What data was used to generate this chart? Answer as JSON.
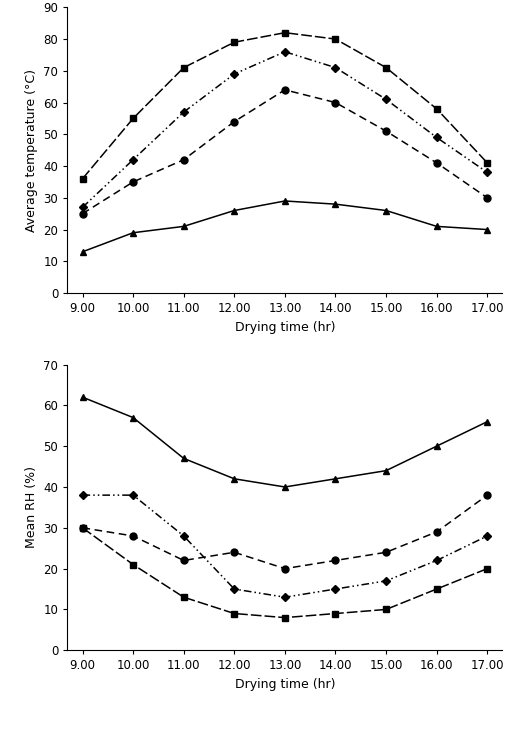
{
  "x": [
    9.0,
    10.0,
    11.0,
    12.0,
    13.0,
    14.0,
    15.0,
    16.0,
    17.0
  ],
  "temp": {
    "open_sun": [
      13,
      19,
      21,
      26,
      29,
      28,
      26,
      21,
      20
    ],
    "zone1": [
      25,
      35,
      42,
      54,
      64,
      60,
      51,
      41,
      30
    ],
    "zone2": [
      27,
      42,
      57,
      69,
      76,
      71,
      61,
      49,
      38
    ],
    "zone3": [
      36,
      55,
      71,
      79,
      82,
      80,
      71,
      58,
      41
    ]
  },
  "rh": {
    "open_sun": [
      62,
      57,
      47,
      42,
      40,
      42,
      44,
      50,
      56
    ],
    "zone1": [
      30,
      28,
      22,
      24,
      20,
      22,
      24,
      29,
      38
    ],
    "zone2": [
      38,
      38,
      28,
      15,
      13,
      15,
      17,
      22,
      28
    ],
    "zone3": [
      30,
      21,
      13,
      9,
      8,
      9,
      10,
      15,
      20
    ]
  },
  "temp_ylim": [
    0,
    90
  ],
  "rh_ylim": [
    0,
    70
  ],
  "xticks": [
    9.0,
    10.0,
    11.0,
    12.0,
    13.0,
    14.0,
    15.0,
    16.0,
    17.0
  ],
  "xticklabels": [
    "9.00",
    "10.00",
    "11.00",
    "12.00",
    "13.00",
    "14.00",
    "15.00",
    "16.00",
    "17.00"
  ],
  "temp_yticks": [
    0,
    10,
    20,
    30,
    40,
    50,
    60,
    70,
    80,
    90
  ],
  "rh_yticks": [
    0,
    10,
    20,
    30,
    40,
    50,
    60,
    70
  ],
  "xlabel": "Drying time (hr)",
  "temp_ylabel": "Average temperature (°C)",
  "rh_ylabel": "Mean RH (%)",
  "font_size": 8.5,
  "label_font_size": 9,
  "legend_font_size": 8.5,
  "lw": 1.1,
  "ms": 5
}
